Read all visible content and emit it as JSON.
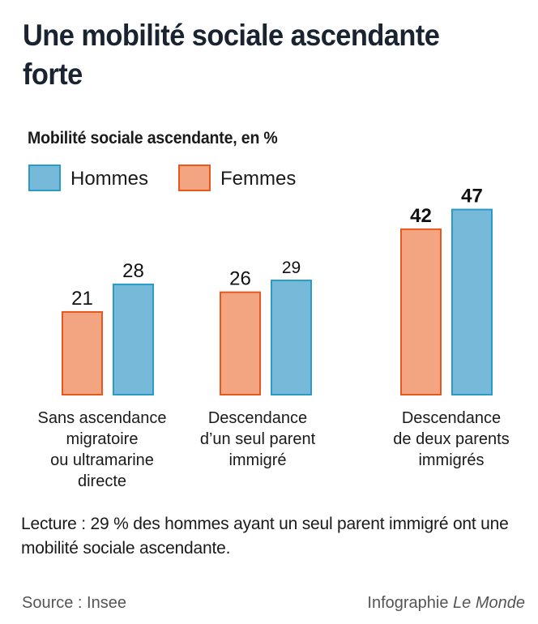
{
  "header": {
    "title": "Une mobilité sociale ascendante forte",
    "subtitle": "Mobilité sociale ascendante, en %"
  },
  "legend": {
    "items": [
      {
        "label": "Hommes",
        "fill": "#76b9d9",
        "stroke": "#2a9ac9"
      },
      {
        "label": "Femmes",
        "fill": "#f3a582",
        "stroke": "#e8581e"
      }
    ]
  },
  "chart_data": {
    "type": "bar",
    "title": "Une mobilité sociale ascendante forte",
    "subtitle": "Mobilité sociale ascendante, en %",
    "xlabel": "",
    "ylabel": "Mobilité sociale ascendante, en %",
    "ylim": [
      0,
      47
    ],
    "grid": false,
    "legend_position": "top-left",
    "categories": [
      "Sans ascendance\nmigratoire\nou ultramarine\ndirecte",
      "Descendance\nd’un seul parent\nimmigré",
      "Descendance\nde deux parents\nimmigrés"
    ],
    "series": [
      {
        "name": "Femmes",
        "fill": "#f3a582",
        "stroke": "#e8581e",
        "values": [
          21,
          26,
          42
        ]
      },
      {
        "name": "Hommes",
        "fill": "#76b9d9",
        "stroke": "#2a9ac9",
        "values": [
          28,
          29,
          47
        ]
      }
    ],
    "data_labels": {
      "Femmes": [
        "21",
        "26",
        "42"
      ],
      "Hommes": [
        "28",
        "29",
        "47"
      ]
    },
    "emphasized_category_index": 2
  },
  "footer": {
    "note": "Lecture : 29 % des hommes ayant un seul parent immigré ont une mobilité sociale ascendante.",
    "source": "Source : Insee",
    "credit_prefix": "Infographie ",
    "credit_brand": "Le Monde"
  }
}
